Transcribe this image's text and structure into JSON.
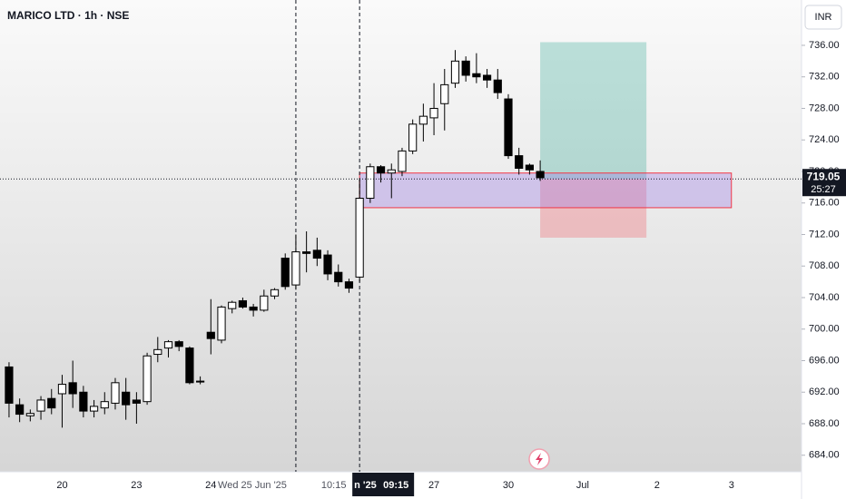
{
  "chart_data": {
    "type": "candlestick",
    "title": "MARICO LTD · 1h · NSE",
    "currency": "INR",
    "open": [
      695.2,
      690.4,
      689.0,
      689.6,
      691.2,
      691.8,
      693.2,
      692.0,
      689.6,
      690.0,
      690.6,
      692.0,
      691.0,
      690.8,
      696.8,
      697.6,
      698.4,
      697.6,
      693.4,
      699.6,
      698.6,
      702.6,
      703.6,
      702.8,
      702.4,
      704.2,
      709.0,
      705.6,
      709.8,
      710.0,
      709.4,
      707.2,
      706.0,
      706.6,
      716.6,
      720.6,
      719.8,
      720.0,
      722.6,
      726.0,
      726.8,
      728.6,
      731.2,
      734.0,
      732.4,
      732.2,
      731.6,
      729.2,
      722.0,
      720.8,
      720.0
    ],
    "high": [
      695.8,
      691.2,
      689.8,
      691.5,
      692.4,
      694.2,
      696.0,
      692.8,
      691.0,
      692.0,
      693.8,
      693.8,
      692.0,
      697.0,
      699.0,
      698.6,
      698.6,
      697.8,
      694.0,
      703.8,
      703.0,
      703.6,
      704.0,
      703.2,
      705.0,
      705.2,
      709.6,
      712.0,
      712.4,
      711.6,
      710.0,
      708.2,
      706.4,
      719.0,
      721.0,
      720.8,
      721.0,
      723.0,
      726.6,
      728.6,
      731.2,
      733.0,
      735.4,
      734.6,
      735.0,
      733.0,
      733.0,
      729.8,
      723.0,
      721.0,
      721.4
    ],
    "low": [
      688.8,
      688.2,
      688.3,
      688.5,
      689.2,
      687.5,
      690.0,
      688.8,
      688.8,
      689.2,
      689.8,
      688.5,
      688.0,
      690.4,
      695.8,
      696.4,
      697.2,
      693.0,
      693.0,
      696.8,
      698.2,
      702.0,
      702.6,
      701.6,
      702.2,
      703.8,
      705.0,
      705.0,
      707.2,
      708.0,
      706.2,
      705.4,
      704.6,
      706.0,
      716.0,
      718.6,
      716.6,
      719.4,
      722.2,
      723.8,
      724.6,
      725.2,
      730.6,
      731.4,
      731.2,
      730.6,
      729.2,
      721.6,
      719.6,
      719.6,
      718.8
    ],
    "close": [
      690.6,
      689.2,
      689.3,
      691.0,
      690.0,
      693.0,
      691.8,
      689.6,
      690.2,
      690.8,
      693.2,
      690.4,
      690.6,
      696.6,
      697.4,
      698.4,
      697.8,
      693.2,
      693.4,
      698.8,
      702.8,
      703.4,
      702.8,
      702.4,
      704.2,
      705.0,
      705.4,
      709.8,
      709.6,
      709.0,
      707.0,
      706.0,
      705.2,
      716.6,
      720.6,
      719.8,
      720.2,
      722.6,
      726.0,
      727.0,
      728.0,
      731.0,
      734.0,
      732.2,
      732.0,
      731.6,
      730.0,
      722.0,
      720.4,
      720.2,
      719.2
    ],
    "up_color": "#ffffff",
    "down_color": "#000000",
    "xlim": [
      -0.85,
      74.6
    ],
    "xticks": [
      {
        "value": 5,
        "label": "20"
      },
      {
        "value": 12,
        "label": "23"
      },
      {
        "value": 19,
        "label": "24"
      },
      {
        "value": 40,
        "label": "27"
      },
      {
        "value": 47,
        "label": "30"
      },
      {
        "value": 54,
        "label": "Jul"
      },
      {
        "value": 61,
        "label": "2"
      },
      {
        "value": 68,
        "label": "3"
      }
    ],
    "ylim": [
      681.9,
      741.75
    ],
    "yticks": [
      {
        "value": 684,
        "label": "684.00"
      },
      {
        "value": 688,
        "label": "688.00"
      },
      {
        "value": 692,
        "label": "692.00"
      },
      {
        "value": 696,
        "label": "696.00"
      },
      {
        "value": 700,
        "label": "700.00"
      },
      {
        "value": 704,
        "label": "704.00"
      },
      {
        "value": 708,
        "label": "708.00"
      },
      {
        "value": 712,
        "label": "712.00"
      },
      {
        "value": 716,
        "label": "716.00"
      },
      {
        "value": 720,
        "label": "720.00"
      },
      {
        "value": 724,
        "label": "724.00"
      },
      {
        "value": 728,
        "label": "728.00"
      },
      {
        "value": 732,
        "label": "732.00"
      },
      {
        "value": 736,
        "label": "736.00"
      }
    ],
    "last_price": {
      "value": 719.05,
      "label": "719.05",
      "countdown": "25:27"
    },
    "crosshairs": [
      {
        "x": 27,
        "date": "Wed 25 Jun '25",
        "time": "10:15"
      },
      {
        "x": 33,
        "date": "n '25",
        "time": "09:15"
      }
    ],
    "zone": {
      "start": 33,
      "end": 68,
      "top": 719.8,
      "bottom": 715.4
    },
    "position": {
      "start": 50,
      "end": 60,
      "target": 736.4,
      "entry": 719.05,
      "stop": 711.6
    }
  }
}
